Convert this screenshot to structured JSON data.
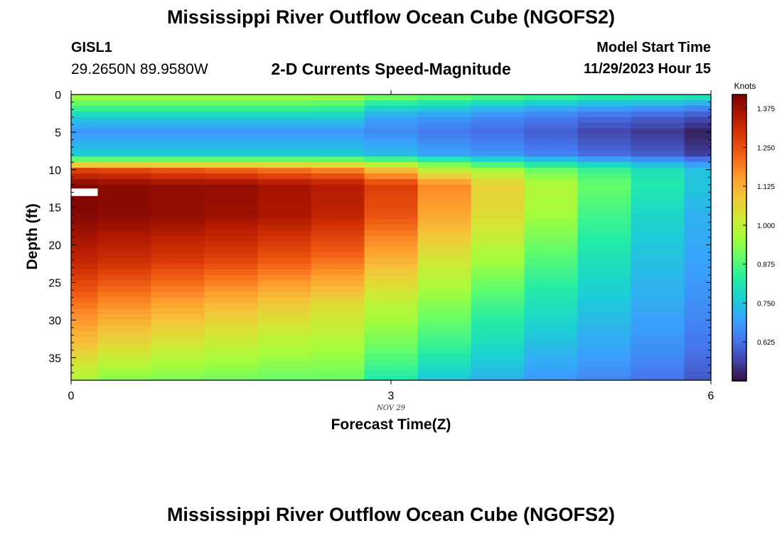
{
  "header": {
    "title": "Mississippi River Outflow Ocean Cube (NGOFS2)",
    "station_id": "GISL1",
    "station_coords": "29.2650N  89.9580W",
    "plot_title": "2-D Currents Speed-Magnitude",
    "model_start_label": "Model Start Time",
    "model_start_value": "11/29/2023 Hour 15"
  },
  "footer": {
    "title": "Mississippi River Outflow Ocean Cube (NGOFS2)"
  },
  "chart_data": {
    "type": "heatmap",
    "title": "2-D Currents Speed-Magnitude",
    "xlabel": "Forecast Time(Z)",
    "ylabel": "Depth (ft)",
    "x_sublabel": "NOV 29",
    "xlim": [
      0,
      6
    ],
    "ylim": [
      38,
      0
    ],
    "x_ticks": [
      0,
      3,
      6
    ],
    "x_tick_labels": [
      "0",
      "3",
      "6"
    ],
    "y_ticks": [
      0,
      5,
      10,
      15,
      20,
      25,
      30,
      35
    ],
    "y_tick_labels": [
      "0",
      "5",
      "10",
      "15",
      "20",
      "25",
      "30",
      "35"
    ],
    "colorbar": {
      "label": "Knots",
      "min": 0.5,
      "max": 1.42,
      "ticks": [
        0.625,
        0.75,
        0.875,
        1.0,
        1.125,
        1.25,
        1.375
      ],
      "tick_labels": [
        "0.625",
        "0.750",
        "0.875",
        "1.000",
        "1.125",
        "1.250",
        "1.375"
      ],
      "colormap": [
        "#30123b",
        "#4145ab",
        "#4675ed",
        "#39a2fc",
        "#1bcfd4",
        "#24eca6",
        "#61fc6c",
        "#a4fc3b",
        "#d1e834",
        "#f3c63a",
        "#fe9b2d",
        "#f36315",
        "#d93806",
        "#b11901",
        "#7a0403"
      ]
    },
    "time_columns": [
      0.0,
      0.25,
      0.75,
      1.25,
      1.75,
      2.25,
      2.75,
      3.25,
      3.75,
      4.25,
      4.75,
      5.25,
      5.75,
      6.0
    ],
    "depth_profiles": {
      "depths": [
        0,
        1.5,
        3,
        5,
        8,
        9,
        10,
        12,
        16,
        22,
        28,
        34,
        38
      ],
      "speed_knots": [
        [
          0.97,
          0.88,
          0.76,
          0.68,
          0.76,
          0.97,
          1.27,
          1.41,
          1.41,
          1.33,
          1.2,
          1.08,
          0.97
        ],
        [
          0.97,
          0.88,
          0.76,
          0.68,
          0.76,
          0.97,
          1.26,
          1.4,
          1.4,
          1.31,
          1.17,
          1.04,
          0.93
        ],
        [
          0.97,
          0.88,
          0.76,
          0.68,
          0.76,
          0.97,
          1.24,
          1.39,
          1.39,
          1.29,
          1.14,
          1.01,
          0.92
        ],
        [
          0.97,
          0.88,
          0.76,
          0.68,
          0.76,
          0.97,
          1.22,
          1.39,
          1.38,
          1.27,
          1.11,
          0.99,
          0.91
        ],
        [
          0.97,
          0.88,
          0.76,
          0.68,
          0.76,
          0.97,
          1.2,
          1.37,
          1.36,
          1.24,
          1.08,
          0.97,
          0.9
        ],
        [
          0.97,
          0.87,
          0.76,
          0.68,
          0.76,
          0.97,
          1.18,
          1.35,
          1.33,
          1.21,
          1.05,
          0.96,
          0.9
        ],
        [
          0.94,
          0.8,
          0.7,
          0.66,
          0.74,
          0.93,
          1.1,
          1.28,
          1.25,
          1.12,
          0.99,
          0.9,
          0.82
        ],
        [
          0.92,
          0.78,
          0.68,
          0.64,
          0.7,
          0.88,
          0.99,
          1.18,
          1.14,
          1.03,
          0.93,
          0.84,
          0.75
        ],
        [
          0.9,
          0.75,
          0.66,
          0.62,
          0.68,
          0.82,
          0.96,
          1.07,
          1.05,
          0.96,
          0.86,
          0.78,
          0.72
        ],
        [
          0.88,
          0.73,
          0.64,
          0.6,
          0.65,
          0.78,
          0.9,
          0.98,
          0.96,
          0.88,
          0.8,
          0.73,
          0.68
        ],
        [
          0.86,
          0.71,
          0.62,
          0.57,
          0.62,
          0.74,
          0.85,
          0.9,
          0.86,
          0.8,
          0.75,
          0.7,
          0.66
        ],
        [
          0.85,
          0.7,
          0.6,
          0.55,
          0.6,
          0.71,
          0.8,
          0.82,
          0.78,
          0.74,
          0.71,
          0.67,
          0.63
        ],
        [
          0.84,
          0.68,
          0.58,
          0.52,
          0.56,
          0.67,
          0.74,
          0.75,
          0.72,
          0.7,
          0.67,
          0.63,
          0.59
        ]
      ]
    },
    "missing_cell": {
      "t0": 0.0,
      "t1": 0.25,
      "d0": 12.5,
      "d1": 13.5
    }
  }
}
